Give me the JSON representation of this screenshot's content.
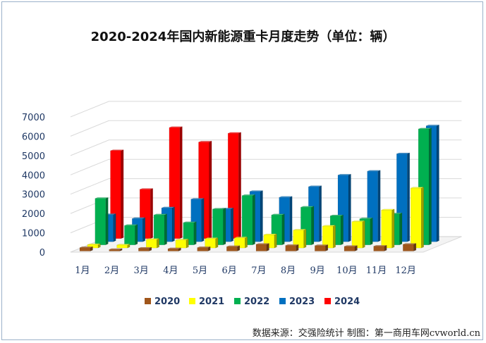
{
  "chart_data": {
    "type": "bar",
    "title": "2020-2024年国内新能源重卡月度走势（单位：辆）",
    "categories": [
      "1月",
      "2月",
      "3月",
      "4月",
      "5月",
      "6月",
      "7月",
      "8月",
      "9月",
      "10月",
      "11月",
      "12月"
    ],
    "y_ticks": [
      "0",
      "1000",
      "2000",
      "3000",
      "4000",
      "5000",
      "6000",
      "7000"
    ],
    "ylim": [
      0,
      7000
    ],
    "grid": true,
    "legend_position": "bottom",
    "series": [
      {
        "name": "2020",
        "color": "#a0561b",
        "values": [
          180,
          80,
          150,
          120,
          180,
          230,
          350,
          290,
          280,
          240,
          250,
          350
        ]
      },
      {
        "name": "2021",
        "color": "#ffff00",
        "values": [
          170,
          150,
          440,
          410,
          480,
          520,
          680,
          920,
          1130,
          1360,
          1960,
          3100
        ]
      },
      {
        "name": "2022",
        "color": "#00b050",
        "values": [
          2400,
          1000,
          1550,
          1150,
          1850,
          2550,
          1550,
          1950,
          1500,
          1350,
          1600,
          6000
        ]
      },
      {
        "name": "2023",
        "color": "#0070c0",
        "values": [
          1400,
          1200,
          1750,
          2200,
          1700,
          2600,
          2300,
          2850,
          3450,
          3650,
          4550,
          6000
        ]
      },
      {
        "name": "2024",
        "color": "#ff0000",
        "values": [
          4550,
          2550,
          5750,
          5000,
          5450,
          null,
          null,
          null,
          null,
          null,
          null,
          null
        ]
      }
    ]
  },
  "footer": {
    "source": "数据来源：交强险统计 制图：第一商用车网cvworld.cn"
  }
}
